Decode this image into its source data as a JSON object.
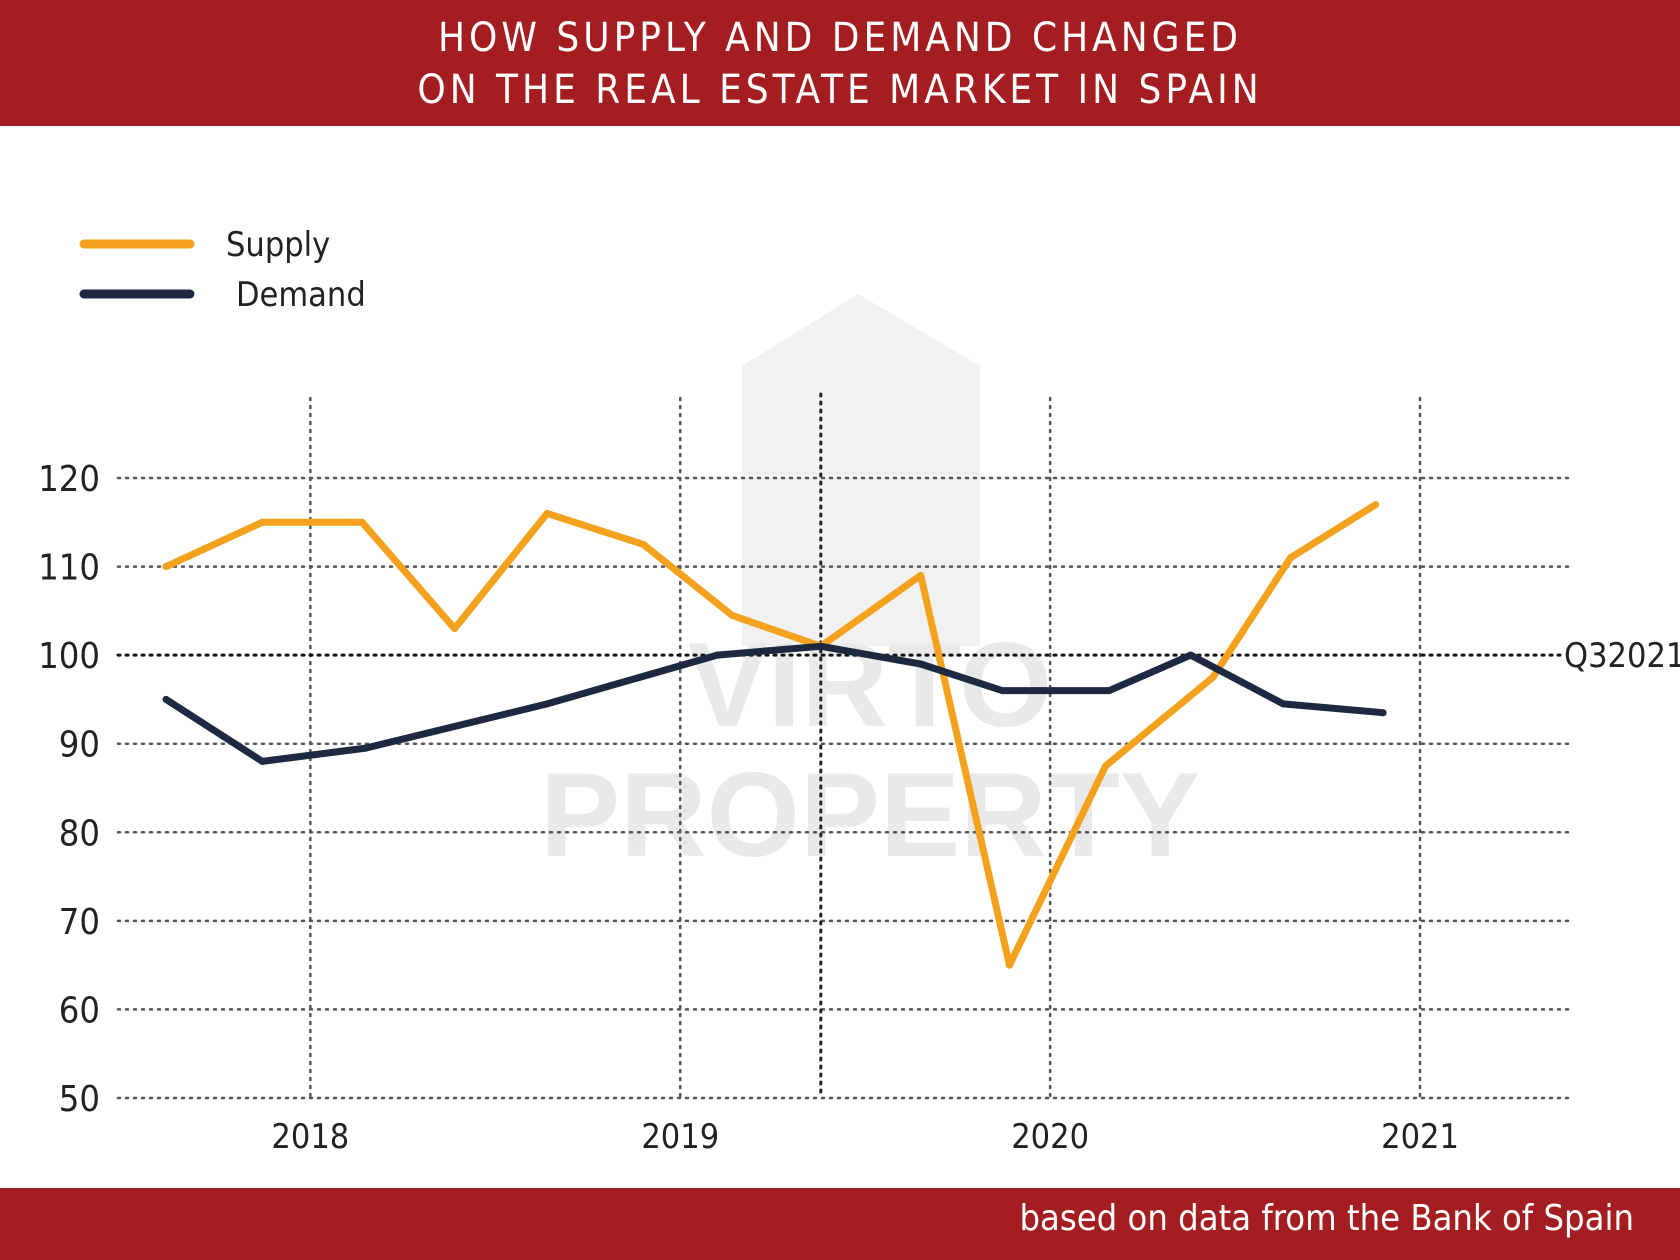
{
  "header": {
    "title_line1": "HOW SUPPLY AND DEMAND CHANGED",
    "title_line2": "ON THE REAL ESTATE MARKET IN SPAIN"
  },
  "footer": {
    "source": "based on data from the Bank of Spain"
  },
  "watermark": {
    "line1": "VIRTO",
    "line2": "PROPERTY"
  },
  "colors": {
    "banner": "#a31d21",
    "supply": "#f4a11d",
    "demand": "#1c2940",
    "grid": "#555555"
  },
  "chart_data": {
    "type": "line",
    "title": "HOW SUPPLY AND DEMAND CHANGED ON THE REAL ESTATE MARKET IN SPAIN",
    "ylim": [
      50,
      120
    ],
    "xlim": [
      2017.48,
      2021.4
    ],
    "y_ticks": [
      50,
      60,
      70,
      80,
      90,
      100,
      110,
      120
    ],
    "x_ticks": [
      {
        "value": 2018.0,
        "label": "2018"
      },
      {
        "value": 2019.0,
        "label": "2019"
      },
      {
        "value": 2020.0,
        "label": "2020"
      },
      {
        "value": 2021.0,
        "label": "2021"
      }
    ],
    "extra_vertical_grid": [
      2019.38
    ],
    "reference_line": {
      "y": 100,
      "label": "Q32021"
    },
    "legend_placement": "top-left",
    "grid": true,
    "series": [
      {
        "name": "Supply",
        "color": "#f4a11d",
        "points": [
          [
            2017.61,
            110
          ],
          [
            2017.87,
            115
          ],
          [
            2018.14,
            115
          ],
          [
            2018.39,
            103
          ],
          [
            2018.64,
            116
          ],
          [
            2018.9,
            112.5
          ],
          [
            2019.14,
            104.5
          ],
          [
            2019.38,
            101
          ],
          [
            2019.65,
            109
          ],
          [
            2019.89,
            65
          ],
          [
            2020.15,
            87.5
          ],
          [
            2020.44,
            97.5
          ],
          [
            2020.65,
            111
          ],
          [
            2020.88,
            117
          ]
        ]
      },
      {
        "name": "Demand",
        "color": "#1c2940",
        "points": [
          [
            2017.61,
            95
          ],
          [
            2017.87,
            88
          ],
          [
            2018.15,
            89.5
          ],
          [
            2018.64,
            94.5
          ],
          [
            2019.1,
            100
          ],
          [
            2019.38,
            101
          ],
          [
            2019.65,
            99
          ],
          [
            2019.87,
            96
          ],
          [
            2020.16,
            96
          ],
          [
            2020.38,
            100
          ],
          [
            2020.63,
            94.5
          ],
          [
            2020.9,
            93.5
          ]
        ]
      }
    ]
  }
}
